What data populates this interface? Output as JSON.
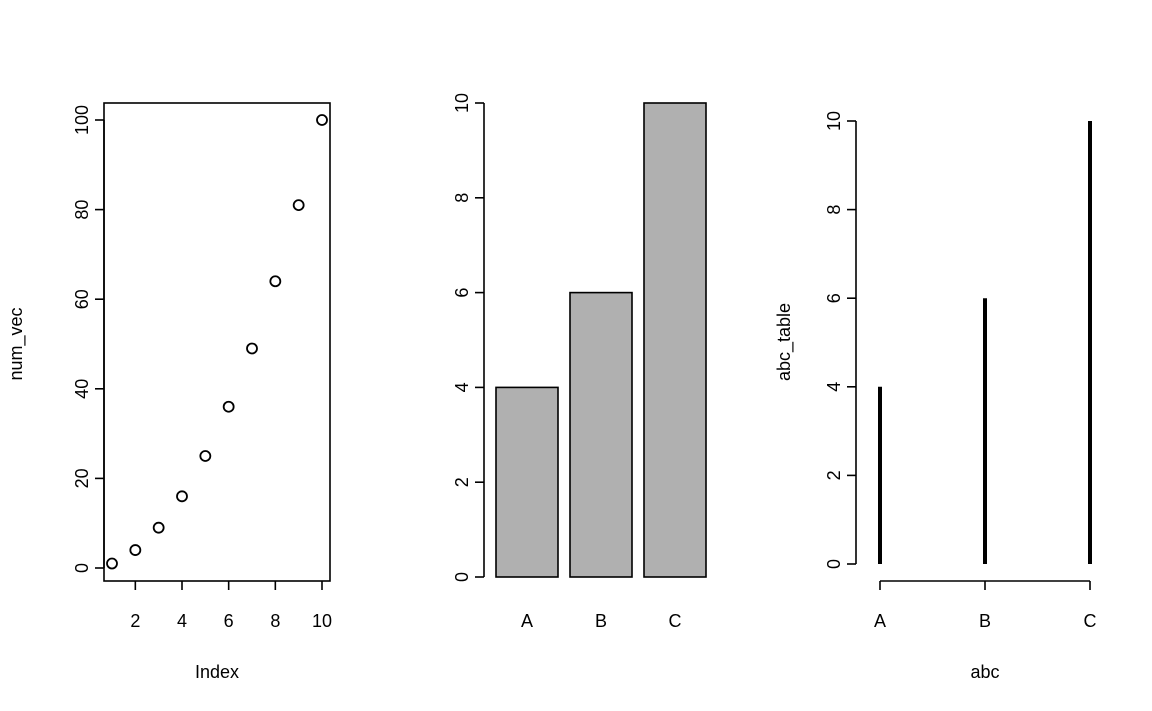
{
  "colors": {
    "bar_fill": "#b0b0b0",
    "ink": "#000000",
    "background": "#ffffff"
  },
  "chart_data": [
    {
      "type": "scatter",
      "marker": "open-circle",
      "title": "",
      "xlabel": "Index",
      "ylabel": "num_vec",
      "x": [
        1,
        2,
        3,
        4,
        5,
        6,
        7,
        8,
        9,
        10
      ],
      "y": [
        1,
        4,
        9,
        16,
        25,
        36,
        49,
        64,
        81,
        100
      ],
      "xlim": [
        1,
        10
      ],
      "ylim": [
        0,
        100
      ],
      "xticks": [
        2,
        4,
        6,
        8,
        10
      ],
      "yticks": [
        0,
        20,
        40,
        60,
        80,
        100
      ],
      "box": true,
      "grid": false
    },
    {
      "type": "bar",
      "title": "",
      "xlabel": "",
      "ylabel": "",
      "categories": [
        "A",
        "B",
        "C"
      ],
      "values": [
        4,
        6,
        10
      ],
      "ylim": [
        0,
        10
      ],
      "yticks": [
        0,
        2,
        4,
        6,
        8,
        10
      ],
      "grid": false
    },
    {
      "type": "bar",
      "style": "vertical-lines",
      "title": "",
      "xlabel": "abc",
      "ylabel": "abc_table",
      "categories": [
        "A",
        "B",
        "C"
      ],
      "values": [
        4,
        6,
        10
      ],
      "ylim": [
        0,
        10
      ],
      "yticks": [
        0,
        2,
        4,
        6,
        8,
        10
      ],
      "grid": false
    }
  ]
}
